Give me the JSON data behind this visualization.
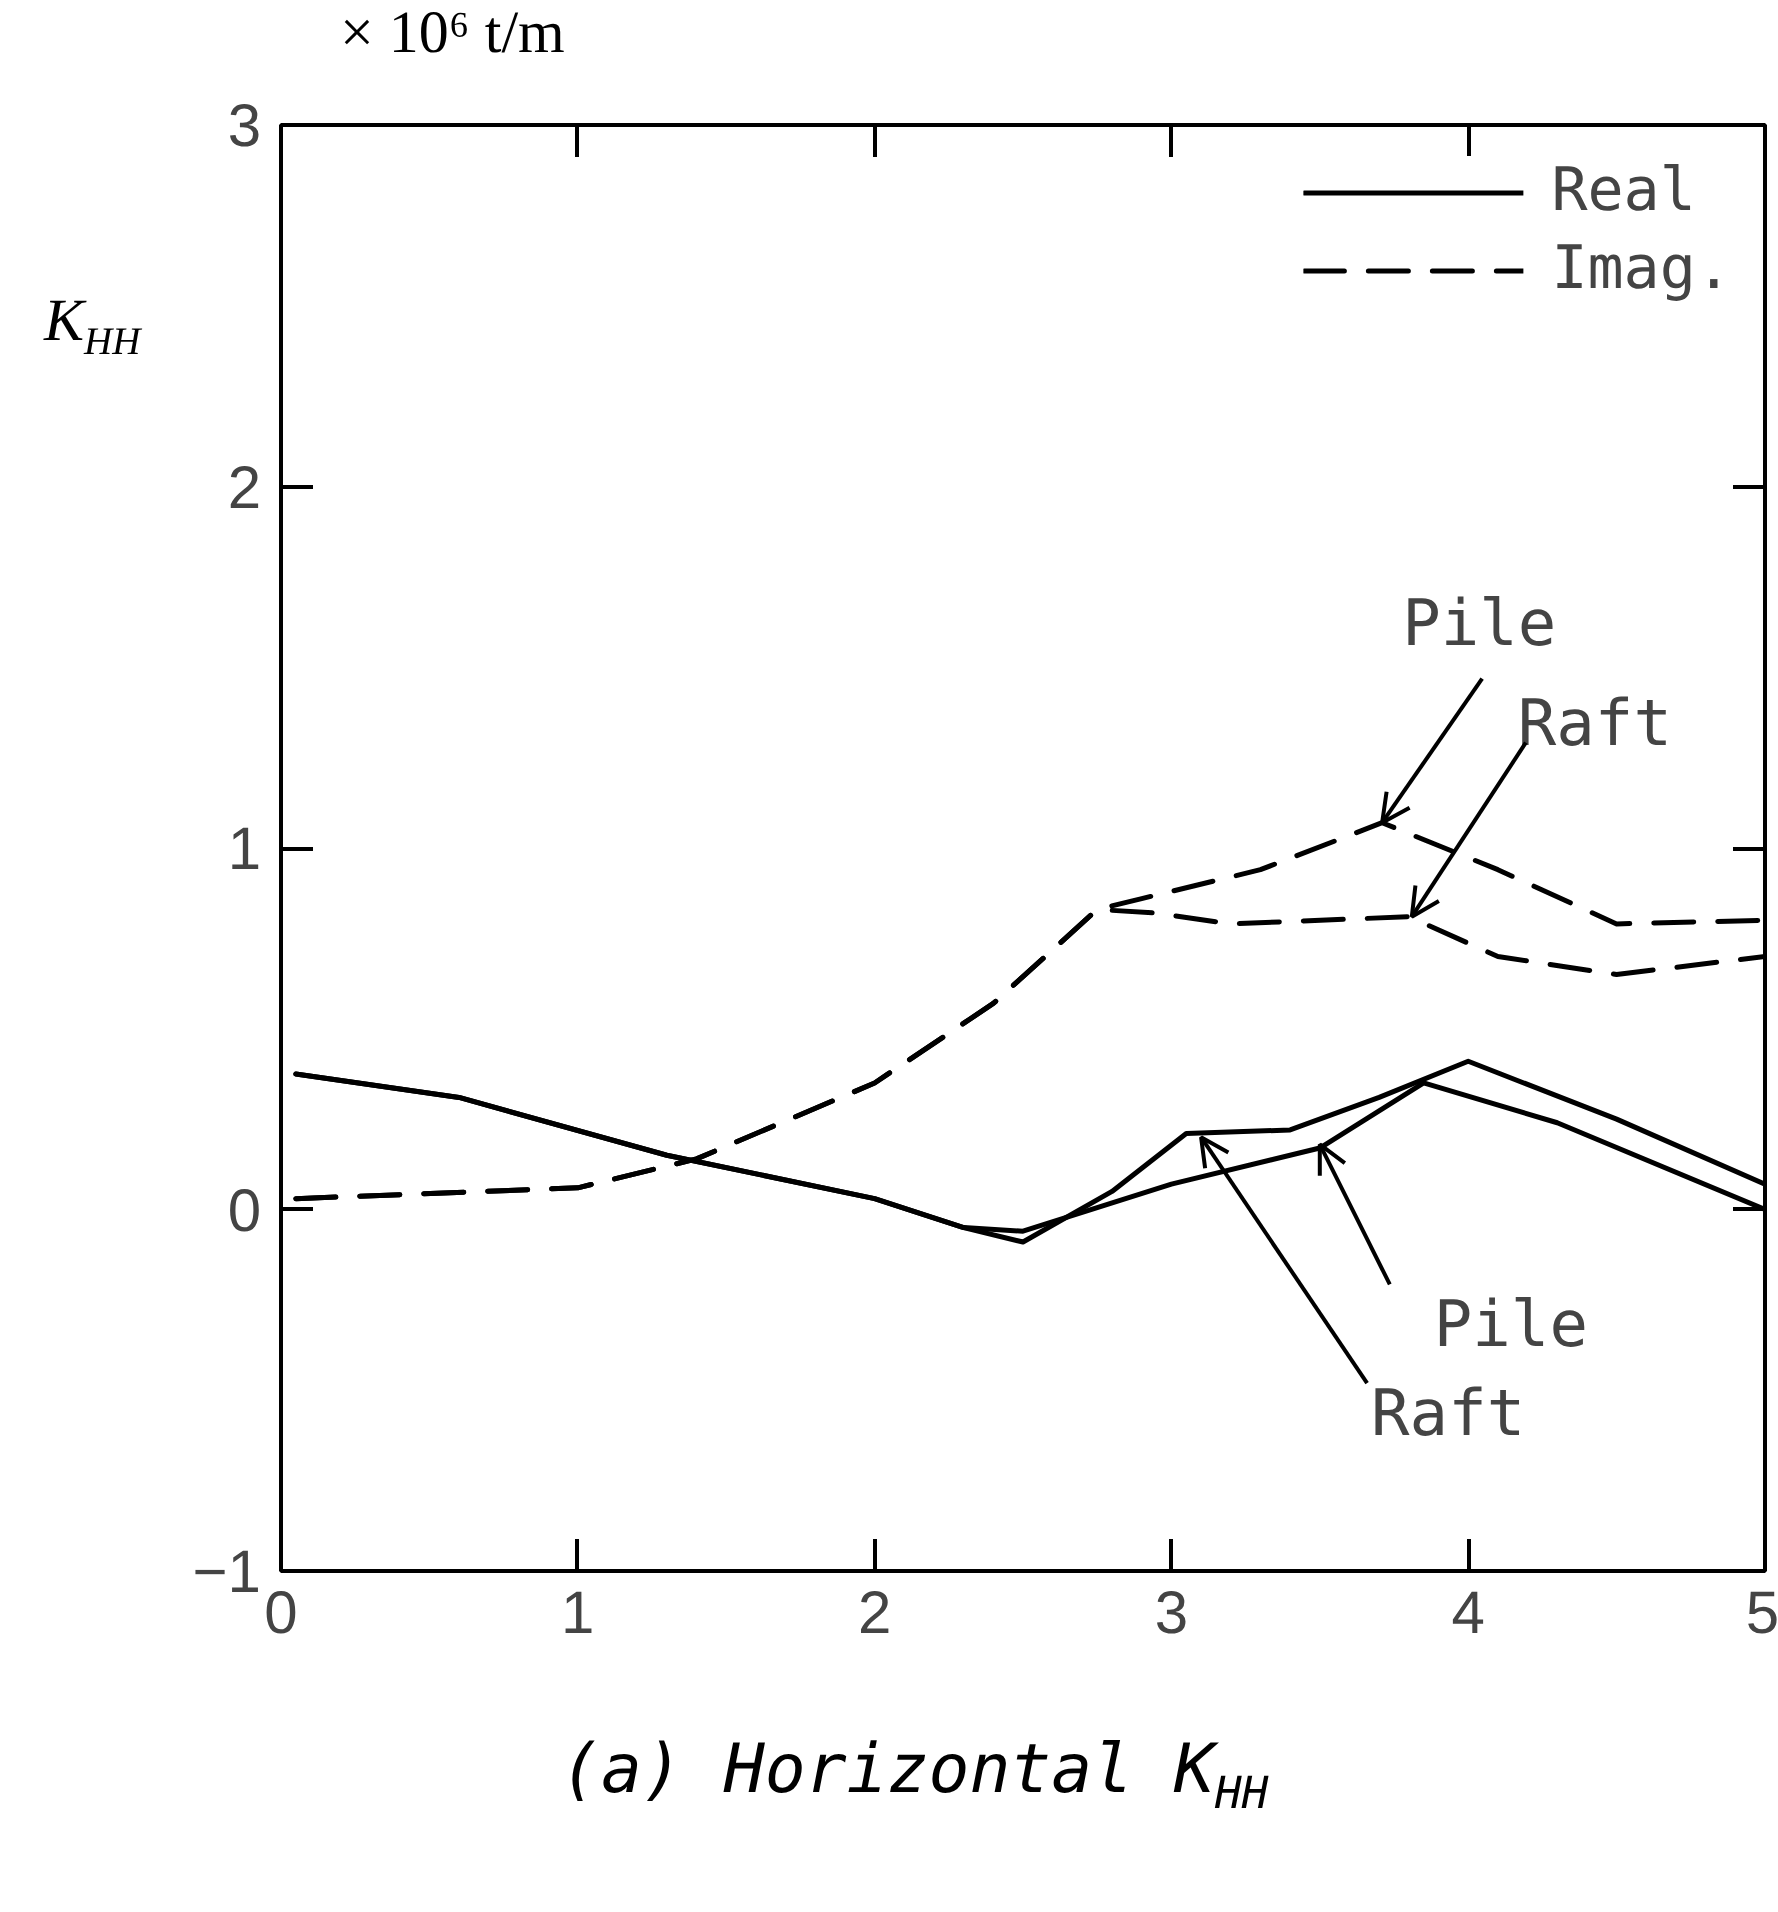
{
  "chart_data": {
    "type": "line",
    "xlabel": "(a) Horizontal K$_{HH}$",
    "ylabel": "K$_{HH}$",
    "subtitle": "× 10⁶ t/m",
    "xlim": [
      0,
      5
    ],
    "ylim": [
      -1,
      3
    ],
    "xticks": [
      0,
      1,
      2,
      3,
      4,
      5
    ],
    "yticks": [
      -1,
      0,
      1,
      2,
      3
    ],
    "grid": false,
    "legend": "top right",
    "marker": "none",
    "series": [
      {
        "name": "Real",
        "color": "#000000",
        "line_style": "solid",
        "x": [
          0.05,
          0.6,
          1.3,
          2.0,
          2.3,
          2.5,
          2.8,
          3.05,
          3.4,
          3.7,
          4.0,
          4.5,
          5.0
        ],
        "values": [
          0.375,
          0.31,
          0.15,
          0.03,
          -0.05,
          -0.09,
          0.05,
          0.21,
          0.22,
          0.31,
          0.41,
          0.25,
          0.07
        ]
      },
      {
        "color": "#000000",
        "line_style": "solid",
        "x": [
          0.05,
          0.6,
          1.3,
          2.0,
          2.3,
          2.5,
          3.0,
          3.5,
          3.85,
          4.3,
          5.0
        ],
        "values": [
          0.375,
          0.31,
          0.15,
          0.03,
          -0.05,
          -0.06,
          0.07,
          0.17,
          0.35,
          0.24,
          0.0
        ]
      },
      {
        "name": "Imag.",
        "color": "#000000",
        "line_style": "dashed",
        "x": [
          0.05,
          1.0,
          1.4,
          2.0,
          2.4,
          2.75,
          2.9,
          3.3,
          3.71,
          4.1,
          4.5,
          5.0
        ],
        "values": [
          0.03,
          0.06,
          0.14,
          0.35,
          0.57,
          0.83,
          0.86,
          0.94,
          1.07,
          0.94,
          0.79,
          0.8
        ]
      },
      {
        "color": "#000000",
        "line_style": "dashed",
        "x": [
          0.05,
          1.0,
          1.4,
          2.0,
          2.4,
          2.75,
          2.95,
          3.2,
          3.8,
          4.1,
          4.5,
          5.0
        ],
        "values": [
          0.03,
          0.06,
          0.14,
          0.35,
          0.57,
          0.83,
          0.82,
          0.79,
          0.81,
          0.7,
          0.65,
          0.7
        ]
      }
    ],
    "annotations": [
      {
        "text": "Pile",
        "x": 3.71,
        "y": 1.07
      },
      {
        "text": "Raft",
        "x": 3.81,
        "y": 0.81
      },
      {
        "text": "Pile",
        "x": 3.5,
        "y": 0.18
      },
      {
        "text": "Raft",
        "x": 3.1,
        "y": 0.2
      }
    ]
  }
}
